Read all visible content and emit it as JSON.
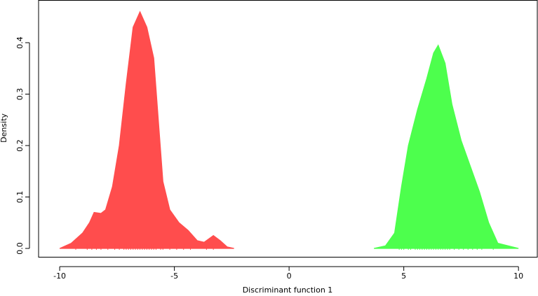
{
  "chart_data": {
    "type": "area",
    "xlabel": "Discriminant function 1",
    "ylabel": "Density",
    "xlim": [
      -10.92,
      10.82
    ],
    "ylim": [
      -0.0177,
      0.483
    ],
    "xticks": [
      -10,
      -5,
      0,
      5,
      10
    ],
    "yticks": [
      {
        "value": 0,
        "label": "0.0"
      },
      0.1,
      0.2,
      0.3,
      0.4
    ],
    "series": [
      {
        "color": "#ff4d4d",
        "x": [
          -10,
          -9.5,
          -9,
          -8.7,
          -8.5,
          -8.2,
          -8.0,
          -7.7,
          -7.4,
          -7.1,
          -6.8,
          -6.5,
          -6.2,
          -5.9,
          -5.7,
          -5.5,
          -5.2,
          -4.8,
          -4.4,
          -4.0,
          -3.7,
          -3.3,
          -3.0,
          -2.7,
          -2.4
        ],
        "values": [
          0,
          0.01,
          0.03,
          0.05,
          0.07,
          0.068,
          0.075,
          0.12,
          0.2,
          0.32,
          0.43,
          0.46,
          0.43,
          0.37,
          0.25,
          0.13,
          0.075,
          0.05,
          0.035,
          0.015,
          0.012,
          0.025,
          0.015,
          0.003,
          0
        ],
        "rug": [
          -9.3,
          -8.8,
          -8.6,
          -8.4,
          -8.2,
          -7.9,
          -7.6,
          -7.4,
          -7.2,
          -7.1,
          -7.0,
          -6.9,
          -6.8,
          -6.7,
          -6.6,
          -6.5,
          -6.4,
          -6.3,
          -6.2,
          -6.1,
          -6.0,
          -5.9,
          -5.8,
          -5.6,
          -5.5,
          -5.2,
          -4.9,
          -4.6,
          -4.3,
          -3.6,
          -3.3
        ]
      },
      {
        "color": "#4dff4d",
        "x": [
          3.7,
          4.2,
          4.6,
          4.9,
          5.2,
          5.6,
          6.0,
          6.3,
          6.5,
          6.8,
          7.1,
          7.5,
          7.9,
          8.3,
          8.7,
          9.1,
          10.0
        ],
        "values": [
          0,
          0.005,
          0.03,
          0.12,
          0.2,
          0.27,
          0.33,
          0.38,
          0.395,
          0.36,
          0.28,
          0.21,
          0.16,
          0.11,
          0.05,
          0.01,
          0
        ],
        "rug": [
          4.8,
          4.9,
          5.0,
          5.2,
          5.3,
          5.5,
          5.6,
          5.7,
          5.8,
          5.9,
          6.0,
          6.1,
          6.2,
          6.3,
          6.4,
          6.5,
          6.6,
          6.7,
          6.8,
          6.9,
          7.0,
          7.2,
          7.4,
          7.6,
          7.8,
          8.0,
          8.2,
          8.4,
          8.9
        ]
      }
    ]
  }
}
